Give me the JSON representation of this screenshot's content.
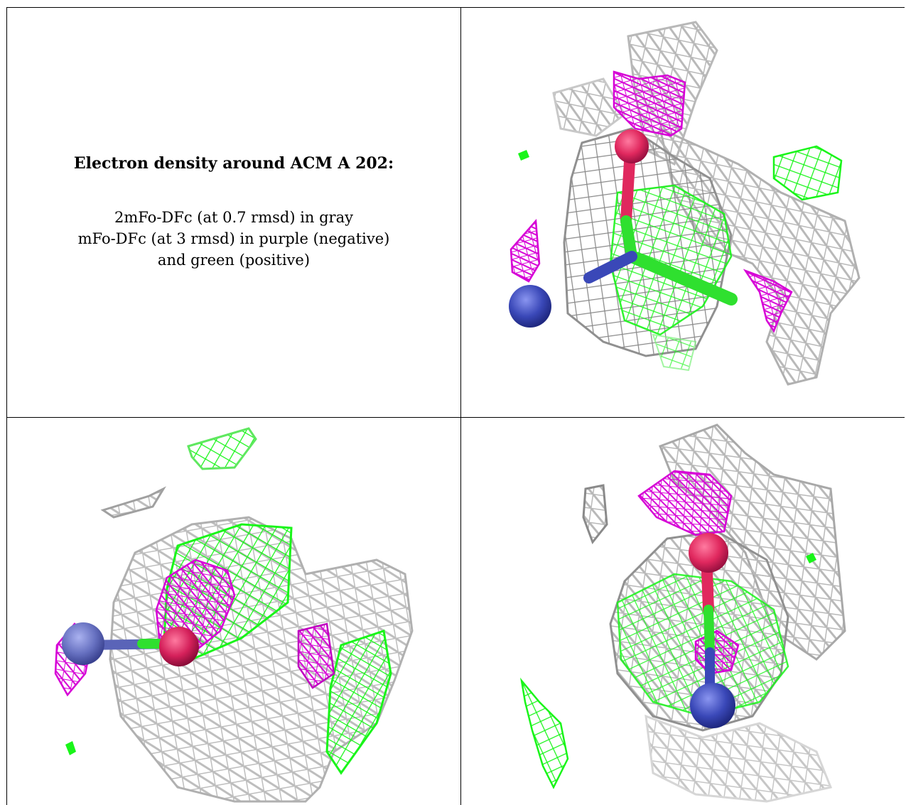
{
  "caption": {
    "title": "Electron density around ACM A 202:",
    "line1": "2mFo-DFc (at 0.7 rmsd) in gray",
    "line2": "mFo-DFc (at 3 rmsd) in purple (negative)",
    "line3": "and green (positive)"
  },
  "colors": {
    "gray_mesh": "#b8b8b8",
    "dark_mesh": "#7a7a7a",
    "negative": "#d600d6",
    "positive": "#19f519",
    "oxygen": "#e0285e",
    "nitrogen": "#3a48b8"
  },
  "panels": [
    {
      "name": "view-top-right"
    },
    {
      "name": "view-bottom-left"
    },
    {
      "name": "view-bottom-right"
    }
  ]
}
